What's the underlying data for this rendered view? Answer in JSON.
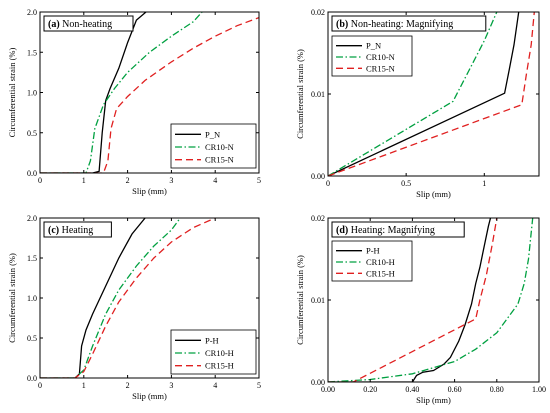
{
  "chart_data": [
    {
      "type": "line",
      "panel_label": "(a) Non-heating",
      "xlabel": "Slip (mm)",
      "ylabel": "Circumferential strain (%)",
      "xlim": [
        0,
        5
      ],
      "ylim": [
        0,
        2.0
      ],
      "xticks": [
        0,
        1,
        2,
        3,
        4,
        5
      ],
      "yticks": [
        0.0,
        0.5,
        1.0,
        1.5,
        2.0
      ],
      "xtick_labels": [
        "0",
        "1",
        "2",
        "3",
        "4",
        "5"
      ],
      "ytick_labels": [
        "0.0",
        "0.5",
        "1.0",
        "1.5",
        "2.0"
      ],
      "grid": false,
      "legend_position": "bottom-right",
      "series": [
        {
          "name": "P_N",
          "color": "#000000",
          "dash": "solid",
          "points": [
            [
              0,
              0
            ],
            [
              1.2,
              0
            ],
            [
              1.35,
              0.02
            ],
            [
              1.42,
              0.5
            ],
            [
              1.5,
              0.9
            ],
            [
              1.6,
              1.05
            ],
            [
              1.8,
              1.3
            ],
            [
              2.0,
              1.62
            ],
            [
              2.2,
              1.9
            ],
            [
              2.42,
              2.0
            ]
          ]
        },
        {
          "name": "CR10-N",
          "color": "#00a040",
          "dash": "dashdot",
          "points": [
            [
              0,
              0
            ],
            [
              1.05,
              0
            ],
            [
              1.15,
              0.15
            ],
            [
              1.25,
              0.55
            ],
            [
              1.45,
              0.85
            ],
            [
              1.7,
              1.05
            ],
            [
              2.0,
              1.25
            ],
            [
              2.5,
              1.5
            ],
            [
              3.0,
              1.7
            ],
            [
              3.5,
              1.88
            ],
            [
              3.7,
              2.0
            ]
          ]
        },
        {
          "name": "CR15-N",
          "color": "#e02020",
          "dash": "dashed",
          "points": [
            [
              0,
              0
            ],
            [
              1.45,
              0
            ],
            [
              1.55,
              0.15
            ],
            [
              1.62,
              0.55
            ],
            [
              1.75,
              0.8
            ],
            [
              2.0,
              0.95
            ],
            [
              2.4,
              1.15
            ],
            [
              3.0,
              1.38
            ],
            [
              3.5,
              1.55
            ],
            [
              4.0,
              1.7
            ],
            [
              4.5,
              1.83
            ],
            [
              5.0,
              1.93
            ]
          ]
        }
      ]
    },
    {
      "type": "line",
      "panel_label": "(b) Non-heating: Magnifying",
      "xlabel": "Slip (mm)",
      "ylabel": "Circumferential strain (%)",
      "xlim": [
        0,
        1.35
      ],
      "ylim": [
        0,
        0.02
      ],
      "xticks": [
        0,
        0.5,
        1.0
      ],
      "yticks": [
        0.0,
        0.01,
        0.02
      ],
      "xtick_labels": [
        "0",
        "0.5",
        "1"
      ],
      "ytick_labels": [
        "0.00",
        "0.01",
        "0.02"
      ],
      "grid": false,
      "legend_position": "top-left",
      "series": [
        {
          "name": "P_N",
          "color": "#000000",
          "dash": "solid",
          "points": [
            [
              0,
              0
            ],
            [
              1.13,
              0.0101
            ],
            [
              1.16,
              0.013
            ],
            [
              1.19,
              0.016
            ],
            [
              1.22,
              0.02
            ]
          ]
        },
        {
          "name": "CR10-N",
          "color": "#00a040",
          "dash": "dashdot",
          "points": [
            [
              0,
              0
            ],
            [
              0.8,
              0.0091
            ],
            [
              0.9,
              0.0128
            ],
            [
              1.0,
              0.0165
            ],
            [
              1.08,
              0.02
            ]
          ]
        },
        {
          "name": "CR15-N",
          "color": "#e02020",
          "dash": "dashed",
          "points": [
            [
              0,
              0
            ],
            [
              1.24,
              0.0087
            ],
            [
              1.27,
              0.0125
            ],
            [
              1.3,
              0.016
            ],
            [
              1.32,
              0.02
            ]
          ]
        }
      ]
    },
    {
      "type": "line",
      "panel_label": "(c) Heating",
      "xlabel": "Slip (mm)",
      "ylabel": "Circumferential strain (%)",
      "xlim": [
        0,
        5
      ],
      "ylim": [
        0,
        2.0
      ],
      "xticks": [
        0,
        1,
        2,
        3,
        4,
        5
      ],
      "yticks": [
        0.0,
        0.5,
        1.0,
        1.5,
        2.0
      ],
      "xtick_labels": [
        "0",
        "1",
        "2",
        "3",
        "4",
        "5"
      ],
      "ytick_labels": [
        "0.0",
        "0.5",
        "1.0",
        "1.5",
        "2.0"
      ],
      "grid": false,
      "legend_position": "bottom-right",
      "series": [
        {
          "name": "P-H",
          "color": "#000000",
          "dash": "solid",
          "points": [
            [
              0,
              0
            ],
            [
              0.8,
              0
            ],
            [
              0.9,
              0.05
            ],
            [
              0.95,
              0.4
            ],
            [
              1.05,
              0.6
            ],
            [
              1.2,
              0.8
            ],
            [
              1.5,
              1.15
            ],
            [
              1.8,
              1.5
            ],
            [
              2.1,
              1.8
            ],
            [
              2.4,
              2.0
            ]
          ]
        },
        {
          "name": "CR10-H",
          "color": "#00a040",
          "dash": "dashdot",
          "points": [
            [
              0,
              0
            ],
            [
              0.8,
              0
            ],
            [
              1.0,
              0.1
            ],
            [
              1.2,
              0.4
            ],
            [
              1.5,
              0.8
            ],
            [
              1.8,
              1.1
            ],
            [
              2.2,
              1.4
            ],
            [
              2.6,
              1.65
            ],
            [
              3.0,
              1.85
            ],
            [
              3.2,
              2.0
            ]
          ]
        },
        {
          "name": "CR15-H",
          "color": "#e02020",
          "dash": "dashed",
          "points": [
            [
              0,
              0
            ],
            [
              0.8,
              0
            ],
            [
              1.0,
              0.08
            ],
            [
              1.2,
              0.3
            ],
            [
              1.5,
              0.65
            ],
            [
              1.8,
              0.95
            ],
            [
              2.2,
              1.25
            ],
            [
              2.6,
              1.5
            ],
            [
              3.0,
              1.7
            ],
            [
              3.5,
              1.88
            ],
            [
              4.0,
              2.0
            ]
          ]
        }
      ]
    },
    {
      "type": "line",
      "panel_label": "(d) Heating: Magnifying",
      "xlabel": "Slip (mm)",
      "ylabel": "Circumferential strain (%)",
      "xlim": [
        0,
        1.0
      ],
      "ylim": [
        0,
        0.02
      ],
      "xticks": [
        0,
        0.2,
        0.4,
        0.6,
        0.8,
        1.0
      ],
      "yticks": [
        0.0,
        0.01,
        0.02
      ],
      "xtick_labels": [
        "0.00",
        "0.20",
        "0.40",
        "0.60",
        "0.80",
        "1.00"
      ],
      "ytick_labels": [
        "0.00",
        "0.01",
        "0.02"
      ],
      "grid": false,
      "legend_position": "top-left",
      "series": [
        {
          "name": "P-H",
          "color": "#000000",
          "dash": "solid",
          "points": [
            [
              0,
              0
            ],
            [
              0.4,
              0
            ],
            [
              0.42,
              0.0008
            ],
            [
              0.45,
              0.0012
            ],
            [
              0.5,
              0.0014
            ],
            [
              0.55,
              0.0022
            ],
            [
              0.58,
              0.003
            ],
            [
              0.62,
              0.005
            ],
            [
              0.65,
              0.007
            ],
            [
              0.68,
              0.0095
            ],
            [
              0.7,
              0.012
            ],
            [
              0.72,
              0.014
            ],
            [
              0.74,
              0.0165
            ],
            [
              0.76,
              0.019
            ],
            [
              0.77,
              0.02
            ]
          ]
        },
        {
          "name": "CR10-H",
          "color": "#00a040",
          "dash": "dashdot",
          "points": [
            [
              0,
              0
            ],
            [
              0.2,
              0.0003
            ],
            [
              0.4,
              0.001
            ],
            [
              0.6,
              0.0025
            ],
            [
              0.7,
              0.004
            ],
            [
              0.8,
              0.006
            ],
            [
              0.9,
              0.0095
            ],
            [
              0.93,
              0.012
            ],
            [
              0.95,
              0.015
            ],
            [
              0.97,
              0.02
            ]
          ]
        },
        {
          "name": "CR15-H",
          "color": "#e02020",
          "dash": "dashed",
          "points": [
            [
              0,
              0
            ],
            [
              0.12,
              0
            ],
            [
              0.7,
              0.0077
            ],
            [
              0.72,
              0.01
            ],
            [
              0.75,
              0.013
            ],
            [
              0.78,
              0.017
            ],
            [
              0.8,
              0.02
            ]
          ]
        }
      ]
    }
  ]
}
